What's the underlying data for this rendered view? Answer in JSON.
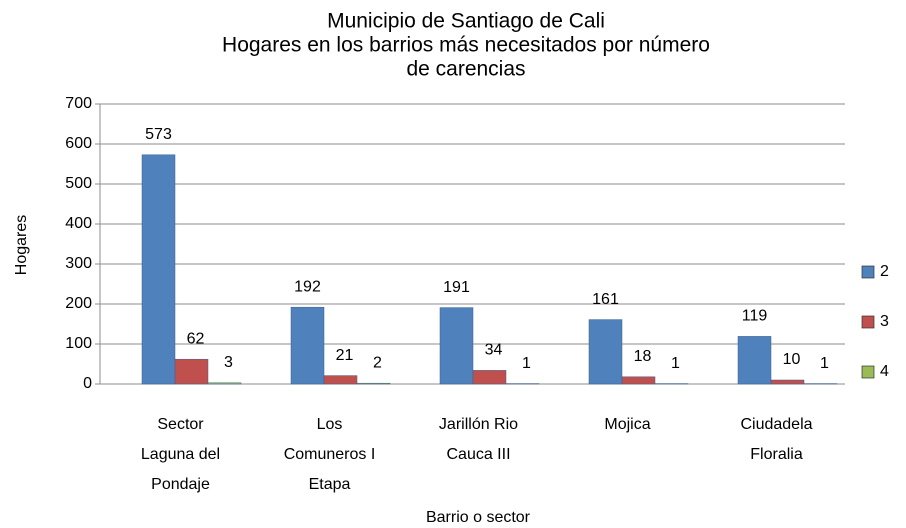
{
  "chart_data": {
    "type": "bar",
    "title": [
      "Municipio de Santiago de Cali",
      "Hogares en los barrios más necesitados por número",
      "de carencias"
    ],
    "categories": [
      [
        "Sector",
        "Laguna del",
        "Pondaje"
      ],
      [
        "Los",
        "Comuneros I",
        "Etapa"
      ],
      [
        "Jarillón Rio",
        "Cauca III"
      ],
      [
        "Mojica"
      ],
      [
        "Ciudadela",
        "Floralia"
      ]
    ],
    "series": [
      {
        "name": "2",
        "color": "#4f81bd",
        "values": [
          573,
          192,
          191,
          161,
          119
        ]
      },
      {
        "name": "3",
        "color": "#c0504d",
        "values": [
          62,
          21,
          34,
          18,
          10
        ]
      },
      {
        "name": "4",
        "color": "#9bbb59",
        "values": [
          3,
          2,
          1,
          1,
          1
        ]
      }
    ],
    "ylim": [
      0,
      700
    ],
    "yticks": [
      0,
      100,
      200,
      300,
      400,
      500,
      600,
      700
    ],
    "grid": true,
    "y_label": "Hogares",
    "x_label": "Barrio o sector",
    "legend": "right"
  }
}
